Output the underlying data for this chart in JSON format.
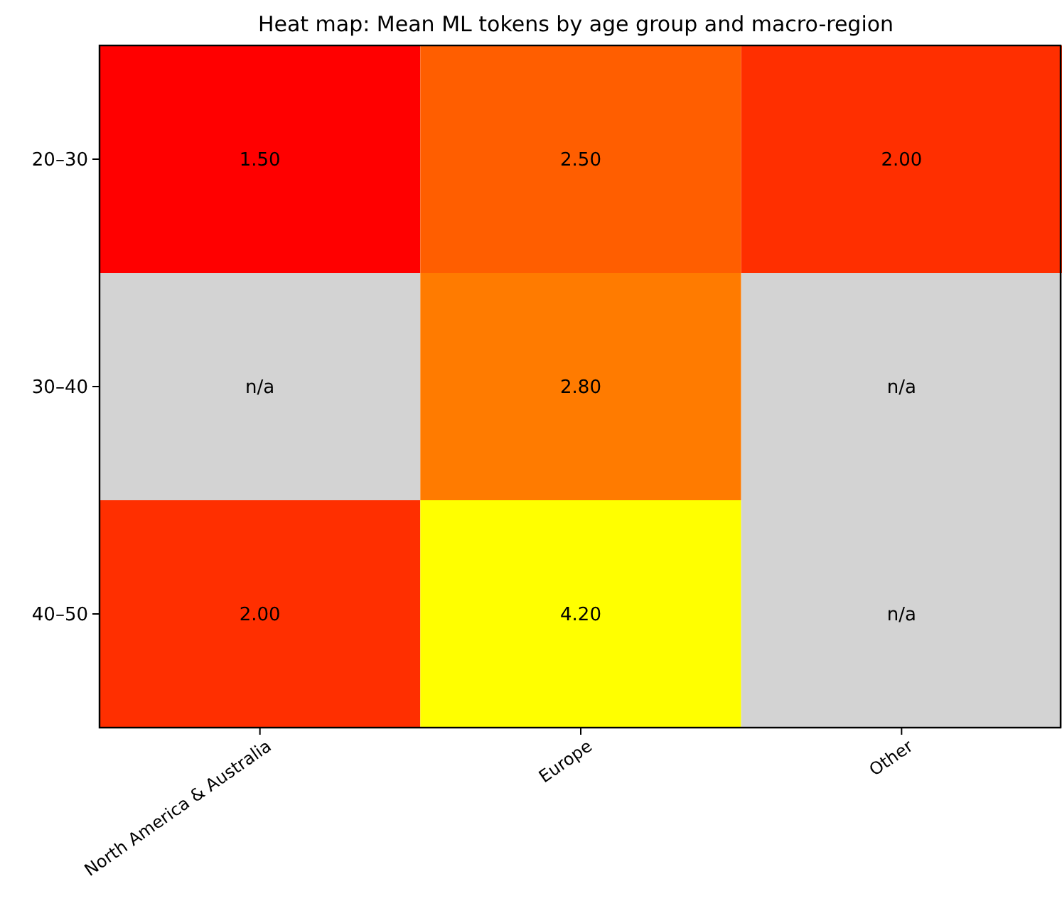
{
  "chart_data": {
    "type": "heatmap",
    "title": "Heat map: Mean ML tokens by age group and macro-region",
    "categories": [
      "North America & Australia",
      "Europe",
      "Other"
    ],
    "y_categories": [
      "20–30",
      "30–40",
      "40–50"
    ],
    "cells": [
      [
        1.5,
        2.5,
        2.0
      ],
      [
        null,
        2.8,
        null
      ],
      [
        2.0,
        4.2,
        null
      ]
    ],
    "cell_labels": [
      [
        "1.50",
        "2.50",
        "2.00"
      ],
      [
        "n/a",
        "2.80",
        "n/a"
      ],
      [
        "2.00",
        "4.20",
        "n/a"
      ]
    ]
  }
}
